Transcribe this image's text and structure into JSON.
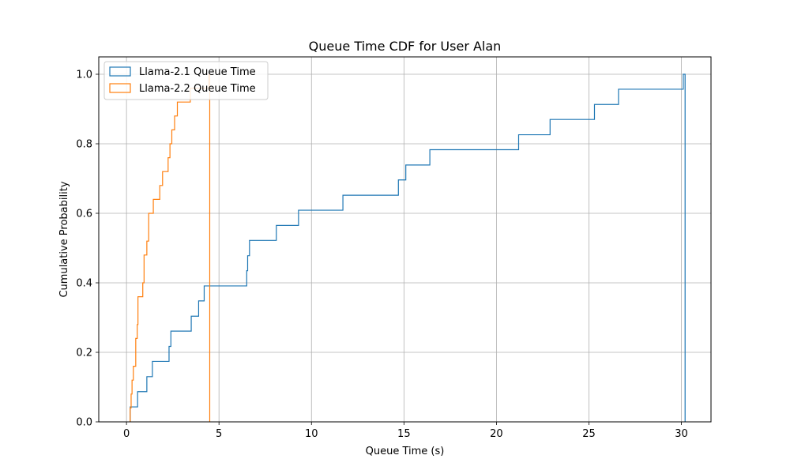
{
  "chart_data": {
    "type": "line",
    "subtype": "step-cdf",
    "title": "Queue Time CDF for User Alan",
    "xlabel": "Queue Time (s)",
    "ylabel": "Cumulative Probability",
    "xlim": [
      -1.5,
      31.6
    ],
    "ylim": [
      0,
      1.05
    ],
    "xticks": [
      0,
      5,
      10,
      15,
      20,
      25,
      30
    ],
    "yticks": [
      0.0,
      0.2,
      0.4,
      0.6,
      0.8,
      1.0
    ],
    "xtick_labels": [
      "0",
      "5",
      "10",
      "15",
      "20",
      "25",
      "30"
    ],
    "ytick_labels": [
      "0.0",
      "0.2",
      "0.4",
      "0.6",
      "0.8",
      "1.0"
    ],
    "grid": true,
    "legend_position": "top-left",
    "series": [
      {
        "name": "Llama-2.1 Queue Time",
        "color": "#1f77b4",
        "x": [
          0.2,
          0.6,
          1.1,
          1.4,
          2.3,
          2.4,
          3.5,
          3.9,
          4.2,
          6.5,
          6.55,
          6.65,
          8.1,
          9.3,
          11.7,
          14.7,
          15.1,
          16.4,
          21.2,
          22.9,
          25.3,
          26.6,
          30.1
        ],
        "y": [
          0.043,
          0.087,
          0.13,
          0.174,
          0.217,
          0.261,
          0.304,
          0.348,
          0.391,
          0.435,
          0.478,
          0.522,
          0.565,
          0.609,
          0.652,
          0.696,
          0.739,
          0.783,
          0.826,
          0.87,
          0.913,
          0.957,
          1.0
        ],
        "x_end": 30.2
      },
      {
        "name": "Llama-2.2 Queue Time",
        "color": "#ff7f0e",
        "x": [
          0.2,
          0.25,
          0.3,
          0.37,
          0.5,
          0.58,
          0.62,
          0.88,
          0.95,
          1.1,
          1.2,
          1.45,
          1.8,
          1.95,
          2.25,
          2.35,
          2.45,
          2.6,
          2.75,
          3.45,
          3.55,
          3.85,
          4.1,
          4.45
        ],
        "y": [
          0.04,
          0.08,
          0.12,
          0.16,
          0.24,
          0.28,
          0.36,
          0.4,
          0.48,
          0.52,
          0.6,
          0.64,
          0.68,
          0.72,
          0.76,
          0.8,
          0.84,
          0.88,
          0.92,
          0.96,
          0.96,
          0.96,
          0.96,
          1.0
        ],
        "x_end": 4.5
      }
    ]
  }
}
